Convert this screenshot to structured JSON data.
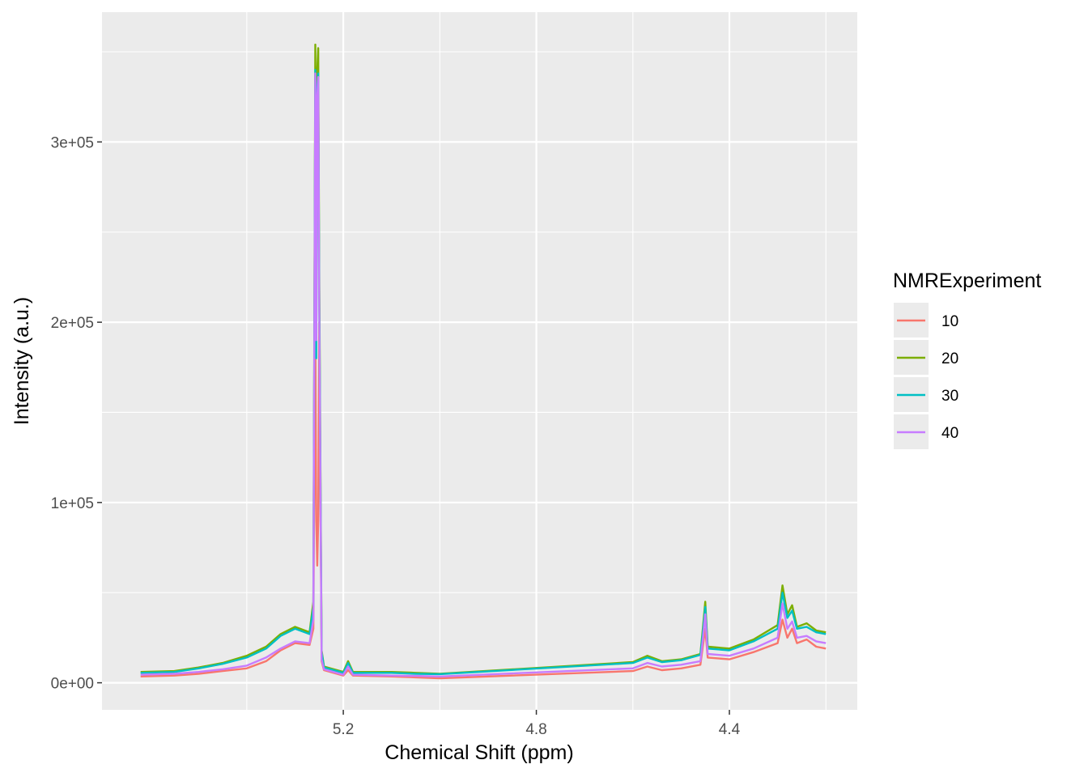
{
  "chart_data": {
    "type": "line",
    "title": "",
    "xlabel": "Chemical Shift (ppm)",
    "ylabel": "Intensity (a.u.)",
    "x_reversed": true,
    "xlim": [
      5.7,
      4.135
    ],
    "ylim": [
      -15000,
      372000
    ],
    "x_ticks": [
      {
        "value": 5.2,
        "label": "5.2"
      },
      {
        "value": 4.8,
        "label": "4.8"
      },
      {
        "value": 4.4,
        "label": "4.4"
      }
    ],
    "x_minor": [
      5.4,
      5.0,
      4.6,
      4.2
    ],
    "y_ticks": [
      {
        "value": 0,
        "label": "0e+00"
      },
      {
        "value": 100000,
        "label": "1e+05"
      },
      {
        "value": 200000,
        "label": "2e+05"
      },
      {
        "value": 300000,
        "label": "3e+05"
      }
    ],
    "y_minor": [
      50000,
      150000,
      250000,
      350000
    ],
    "grid": true,
    "legend": {
      "title": "NMRExperiment",
      "placement": "right"
    },
    "series": [
      {
        "name": "10",
        "color": "#F8766D",
        "points": [
          [
            5.62,
            3500
          ],
          [
            5.55,
            4000
          ],
          [
            5.5,
            5000
          ],
          [
            5.45,
            6500
          ],
          [
            5.4,
            8000
          ],
          [
            5.36,
            12000
          ],
          [
            5.33,
            18000
          ],
          [
            5.3,
            22000
          ],
          [
            5.27,
            21000
          ],
          [
            5.262,
            30000
          ],
          [
            5.258,
            200000
          ],
          [
            5.256,
            90000
          ],
          [
            5.254,
            65000
          ],
          [
            5.252,
            90000
          ],
          [
            5.25,
            200000
          ],
          [
            5.245,
            12000
          ],
          [
            5.24,
            7000
          ],
          [
            5.2,
            4000
          ],
          [
            5.19,
            7000
          ],
          [
            5.18,
            4000
          ],
          [
            5.1,
            3500
          ],
          [
            5.05,
            3000
          ],
          [
            5.0,
            2500
          ],
          [
            4.6,
            6500
          ],
          [
            4.57,
            9000
          ],
          [
            4.54,
            7000
          ],
          [
            4.5,
            8000
          ],
          [
            4.46,
            10000
          ],
          [
            4.455,
            20000
          ],
          [
            4.45,
            30000
          ],
          [
            4.445,
            14000
          ],
          [
            4.4,
            13000
          ],
          [
            4.35,
            17000
          ],
          [
            4.3,
            22000
          ],
          [
            4.29,
            35000
          ],
          [
            4.28,
            25000
          ],
          [
            4.27,
            30000
          ],
          [
            4.26,
            22000
          ],
          [
            4.24,
            24000
          ],
          [
            4.22,
            20000
          ],
          [
            4.2,
            19000
          ]
        ]
      },
      {
        "name": "20",
        "color": "#7CAE00",
        "points": [
          [
            5.62,
            6000
          ],
          [
            5.55,
            6500
          ],
          [
            5.5,
            8500
          ],
          [
            5.45,
            11000
          ],
          [
            5.4,
            15000
          ],
          [
            5.36,
            20000
          ],
          [
            5.33,
            27000
          ],
          [
            5.3,
            31000
          ],
          [
            5.27,
            28000
          ],
          [
            5.262,
            45000
          ],
          [
            5.258,
            354000
          ],
          [
            5.256,
            200000
          ],
          [
            5.254,
            340000
          ],
          [
            5.252,
            352000
          ],
          [
            5.25,
            230000
          ],
          [
            5.245,
            18000
          ],
          [
            5.24,
            9000
          ],
          [
            5.2,
            6000
          ],
          [
            5.19,
            12000
          ],
          [
            5.18,
            6000
          ],
          [
            5.1,
            6000
          ],
          [
            5.05,
            5500
          ],
          [
            5.0,
            5000
          ],
          [
            4.6,
            11500
          ],
          [
            4.57,
            15000
          ],
          [
            4.54,
            12000
          ],
          [
            4.5,
            13000
          ],
          [
            4.46,
            16000
          ],
          [
            4.455,
            30000
          ],
          [
            4.45,
            45000
          ],
          [
            4.445,
            20000
          ],
          [
            4.4,
            19000
          ],
          [
            4.35,
            24000
          ],
          [
            4.3,
            32000
          ],
          [
            4.29,
            54000
          ],
          [
            4.28,
            38000
          ],
          [
            4.27,
            43000
          ],
          [
            4.26,
            31000
          ],
          [
            4.24,
            33000
          ],
          [
            4.22,
            29000
          ],
          [
            4.2,
            28000
          ]
        ]
      },
      {
        "name": "30",
        "color": "#00BFC4",
        "points": [
          [
            5.62,
            5500
          ],
          [
            5.55,
            6000
          ],
          [
            5.5,
            8000
          ],
          [
            5.45,
            10500
          ],
          [
            5.4,
            14000
          ],
          [
            5.36,
            19000
          ],
          [
            5.33,
            26000
          ],
          [
            5.3,
            30000
          ],
          [
            5.27,
            27000
          ],
          [
            5.262,
            42000
          ],
          [
            5.258,
            340000
          ],
          [
            5.256,
            180000
          ],
          [
            5.254,
            330000
          ],
          [
            5.252,
            338000
          ],
          [
            5.25,
            220000
          ],
          [
            5.245,
            17000
          ],
          [
            5.24,
            8500
          ],
          [
            5.2,
            5500
          ],
          [
            5.19,
            11000
          ],
          [
            5.18,
            5500
          ],
          [
            5.1,
            5500
          ],
          [
            5.05,
            5000
          ],
          [
            5.0,
            4800
          ],
          [
            4.6,
            11000
          ],
          [
            4.57,
            14000
          ],
          [
            4.54,
            11500
          ],
          [
            4.5,
            12500
          ],
          [
            4.46,
            15500
          ],
          [
            4.455,
            28000
          ],
          [
            4.45,
            42000
          ],
          [
            4.445,
            19000
          ],
          [
            4.4,
            18000
          ],
          [
            4.35,
            23000
          ],
          [
            4.3,
            30000
          ],
          [
            4.29,
            50000
          ],
          [
            4.28,
            36000
          ],
          [
            4.27,
            40000
          ],
          [
            4.26,
            30000
          ],
          [
            4.24,
            31000
          ],
          [
            4.22,
            28000
          ],
          [
            4.2,
            27000
          ]
        ]
      },
      {
        "name": "40",
        "color": "#C77CFF",
        "points": [
          [
            5.62,
            4500
          ],
          [
            5.55,
            5000
          ],
          [
            5.5,
            6000
          ],
          [
            5.45,
            7500
          ],
          [
            5.4,
            9500
          ],
          [
            5.36,
            14000
          ],
          [
            5.33,
            19000
          ],
          [
            5.3,
            23000
          ],
          [
            5.27,
            22000
          ],
          [
            5.262,
            35000
          ],
          [
            5.258,
            338000
          ],
          [
            5.256,
            190000
          ],
          [
            5.254,
            325000
          ],
          [
            5.252,
            336000
          ],
          [
            5.25,
            210000
          ],
          [
            5.245,
            13000
          ],
          [
            5.24,
            7500
          ],
          [
            5.2,
            4500
          ],
          [
            5.19,
            9000
          ],
          [
            5.18,
            4500
          ],
          [
            5.1,
            4000
          ],
          [
            5.05,
            3800
          ],
          [
            5.0,
            3500
          ],
          [
            4.6,
            8000
          ],
          [
            4.57,
            11000
          ],
          [
            4.54,
            9000
          ],
          [
            4.5,
            10000
          ],
          [
            4.46,
            12000
          ],
          [
            4.455,
            24000
          ],
          [
            4.45,
            38000
          ],
          [
            4.445,
            16000
          ],
          [
            4.4,
            15000
          ],
          [
            4.35,
            19000
          ],
          [
            4.3,
            25000
          ],
          [
            4.29,
            44000
          ],
          [
            4.28,
            30000
          ],
          [
            4.27,
            34000
          ],
          [
            4.26,
            25000
          ],
          [
            4.24,
            26000
          ],
          [
            4.22,
            23000
          ],
          [
            4.2,
            22000
          ]
        ]
      }
    ]
  }
}
